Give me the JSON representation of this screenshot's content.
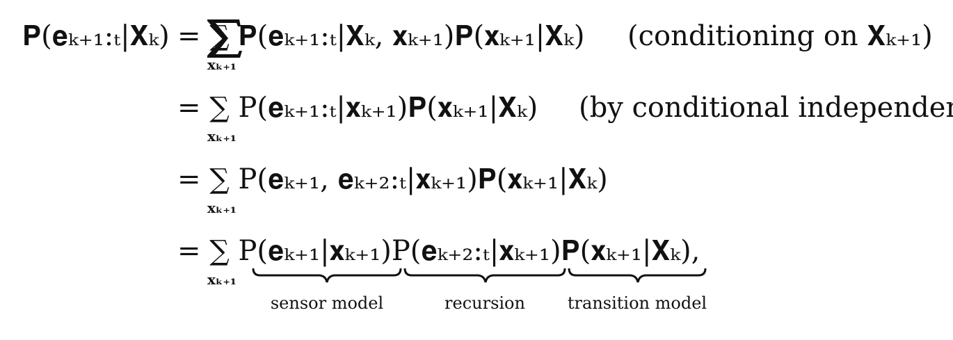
{
  "document": {
    "type": "equation",
    "lhs": "𝐏(𝐞ₖ₊₁:ₜ|𝐗ₖ)",
    "rows": [
      {
        "expression": "= ∑ 𝐏(𝐞ₖ₊₁:ₜ|𝐗ₖ, 𝐱ₖ₊₁)𝐏(𝐱ₖ₊₁|𝐗ₖ)",
        "note": "(conditioning on 𝐗ₖ₊₁)"
      },
      {
        "expression": "= ∑ P(𝐞ₖ₊₁:ₜ|𝐱ₖ₊₁)𝐏(𝐱ₖ₊₁|𝐗ₖ)",
        "note": "(by conditional independence)"
      },
      {
        "expression": "= ∑ P(𝐞ₖ₊₁, 𝐞ₖ₊₂:ₜ|𝐱ₖ₊₁)𝐏(𝐱ₖ₊₁|𝐗ₖ)",
        "note": ""
      },
      {
        "expression": "= ∑ P(𝐞ₖ₊₁|𝐱ₖ₊₁)P(𝐞ₖ₊₂:ₜ|𝐱ₖ₊₁)𝐏(𝐱ₖ₊₁|𝐗ₖ),",
        "note": ""
      }
    ],
    "sum_index": "𝐱ₖ₊₁",
    "braces": [
      {
        "label": "sensor model"
      },
      {
        "label": "recursion"
      },
      {
        "label": "transition model"
      }
    ]
  }
}
